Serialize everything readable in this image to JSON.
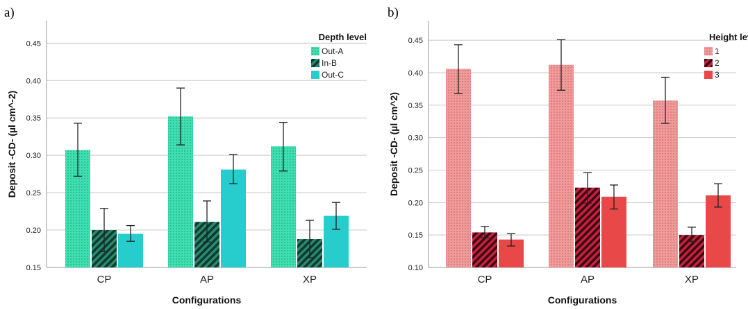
{
  "chart_data": [
    {
      "panel_label": "a)",
      "type": "bar",
      "xlabel": "Configurations",
      "ylabel": "Deposit -CD- (µl cm^-2)",
      "ylim": [
        0.15,
        0.48
      ],
      "yticks": [
        "0.15",
        "0.20",
        "0.25",
        "0.30",
        "0.35",
        "0.40",
        "0.45"
      ],
      "ytick_values": [
        0.15,
        0.2,
        0.25,
        0.3,
        0.35,
        0.4,
        0.45
      ],
      "grid": true,
      "legend_title": "Depth level",
      "legend_position": "top-right",
      "categories": [
        "CP",
        "AP",
        "XP"
      ],
      "series": [
        {
          "name": "Out-A",
          "color": "#3de0b0",
          "pattern": "dots",
          "values": [
            0.307,
            0.352,
            0.312
          ],
          "err_low": [
            0.272,
            0.314,
            0.279
          ],
          "err_high": [
            0.343,
            0.39,
            0.344
          ]
        },
        {
          "name": "In-B",
          "color": "#1f6e5a",
          "pattern": "stripes",
          "values": [
            0.2,
            0.211,
            0.188
          ],
          "err_low": [
            0.171,
            0.184,
            0.163
          ],
          "err_high": [
            0.229,
            0.239,
            0.213
          ]
        },
        {
          "name": "Out-C",
          "color": "#26cdcc",
          "pattern": "solid",
          "values": [
            0.195,
            0.281,
            0.219
          ],
          "err_low": [
            0.185,
            0.262,
            0.201
          ],
          "err_high": [
            0.206,
            0.301,
            0.237
          ]
        }
      ]
    },
    {
      "panel_label": "b)",
      "type": "bar",
      "xlabel": "Configurations",
      "ylabel": "Deposit -CD- (µl cm^2)",
      "ylim": [
        0.1,
        0.48
      ],
      "yticks": [
        "0.10",
        "0.15",
        "0.20",
        "0.25",
        "0.30",
        "0.35",
        "0.40",
        "0.45"
      ],
      "ytick_values": [
        0.1,
        0.15,
        0.2,
        0.25,
        0.3,
        0.35,
        0.4,
        0.45
      ],
      "grid": true,
      "legend_title": "Height level",
      "legend_position": "top-right",
      "categories": [
        "CP",
        "AP",
        "XP"
      ],
      "series": [
        {
          "name": "1",
          "color": "#f08c8c",
          "pattern": "dots",
          "values": [
            0.406,
            0.412,
            0.357
          ],
          "err_low": [
            0.368,
            0.373,
            0.322
          ],
          "err_high": [
            0.443,
            0.451,
            0.393
          ]
        },
        {
          "name": "2",
          "color": "#b0203a",
          "pattern": "stripes",
          "values": [
            0.154,
            0.223,
            0.15
          ],
          "err_low": [
            0.146,
            0.199,
            0.14
          ],
          "err_high": [
            0.163,
            0.246,
            0.162
          ]
        },
        {
          "name": "3",
          "color": "#e84848",
          "pattern": "solid",
          "values": [
            0.143,
            0.209,
            0.211
          ],
          "err_low": [
            0.133,
            0.19,
            0.193
          ],
          "err_high": [
            0.152,
            0.227,
            0.229
          ]
        }
      ]
    }
  ]
}
